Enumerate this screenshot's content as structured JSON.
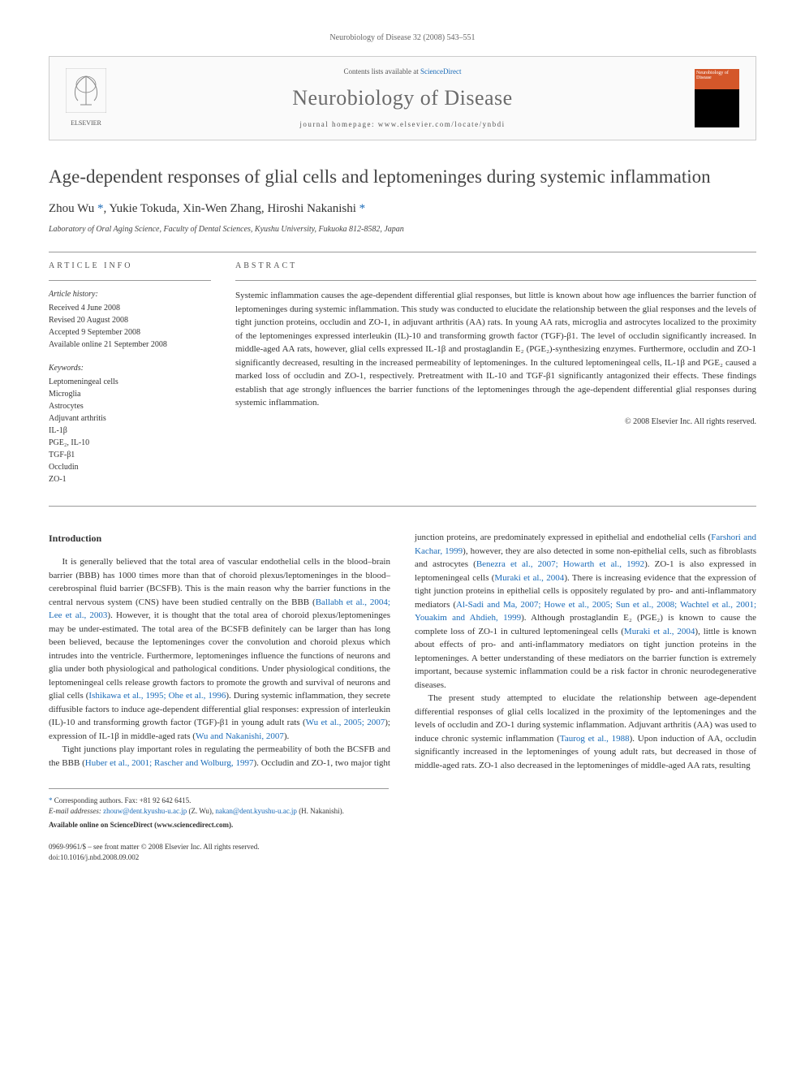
{
  "header": {
    "citation": "Neurobiology of Disease 32 (2008) 543–551"
  },
  "banner": {
    "elsevier_label": "ELSEVIER",
    "contents_prefix": "Contents lists available at ",
    "contents_link": "ScienceDirect",
    "journal_name": "Neurobiology of Disease",
    "homepage_prefix": "journal homepage: ",
    "homepage_url": "www.elsevier.com/locate/ynbdi",
    "cover_title": "Neurobiology of Disease"
  },
  "article": {
    "title": "Age-dependent responses of glial cells and leptomeninges during systemic inflammation",
    "authors_html": "Zhou Wu <span class='star'>*</span>, Yukie Tokuda, Xin-Wen Zhang, Hiroshi Nakanishi <span class='star'>*</span>",
    "affiliation": "Laboratory of Oral Aging Science, Faculty of Dental Sciences, Kyushu University, Fukuoka 812-8582, Japan"
  },
  "info": {
    "label": "ARTICLE INFO",
    "history_label": "Article history:",
    "history": [
      "Received 4 June 2008",
      "Revised 20 August 2008",
      "Accepted 9 September 2008",
      "Available online 21 September 2008"
    ],
    "keywords_label": "Keywords:",
    "keywords": [
      "Leptomeningeal cells",
      "Microglia",
      "Astrocytes",
      "Adjuvant arthritis",
      "IL-1β",
      "PGE₂, IL-10",
      "TGF-β1",
      "Occludin",
      "ZO-1"
    ]
  },
  "abstract": {
    "label": "ABSTRACT",
    "text": "Systemic inflammation causes the age-dependent differential glial responses, but little is known about how age influences the barrier function of leptomeninges during systemic inflammation. This study was conducted to elucidate the relationship between the glial responses and the levels of tight junction proteins, occludin and ZO-1, in adjuvant arthritis (AA) rats. In young AA rats, microglia and astrocytes localized to the proximity of the leptomeninges expressed interleukin (IL)-10 and transforming growth factor (TGF)-β1. The level of occludin significantly increased. In middle-aged AA rats, however, glial cells expressed IL-1β and prostaglandin E₂ (PGE₂)-synthesizing enzymes. Furthermore, occludin and ZO-1 significantly decreased, resulting in the increased permeability of leptomeninges. In the cultured leptomeningeal cells, IL-1β and PGE₂ caused a marked loss of occludin and ZO-1, respectively. Pretreatment with IL-10 and TGF-β1 significantly antagonized their effects. These findings establish that age strongly influences the barrier functions of the leptomeninges through the age-dependent differential glial responses during systemic inflammation.",
    "copyright": "© 2008 Elsevier Inc. All rights reserved."
  },
  "body": {
    "intro_heading": "Introduction",
    "p1": "It is generally believed that the total area of vascular endothelial cells in the blood–brain barrier (BBB) has 1000 times more than that of choroid plexus/leptomeninges in the blood–cerebrospinal fluid barrier (BCSFB). This is the main reason why the barrier functions in the central nervous system (CNS) have been studied centrally on the BBB (",
    "p1_ref1": "Ballabh et al., 2004; Lee et al., 2003",
    "p1_cont": "). However, it is thought that the total area of choroid plexus/leptomeninges may be under-estimated. The total area of the BCSFB definitely can be larger than has long been believed, because the leptomeninges cover the convolution and choroid plexus which intrudes into the ventricle. Furthermore, leptomeninges influence the functions of neurons and glia under both physiological and pathological conditions. Under physiological conditions, the leptomeningeal cells release growth factors to promote the growth and survival of neurons and glial cells (",
    "p1_ref2": "Ishikawa et al., 1995; Ohe et al., 1996",
    "p1_cont2": "). During systemic inflammation, they secrete diffusible factors to induce age-dependent differential glial responses: expression of interleukin (IL)-10 and transforming growth factor (TGF)-β1 in young adult rats (",
    "p1_ref3": "Wu et al., 2005; 2007",
    "p1_cont3": "); expression of IL-1β in middle-aged rats (",
    "p1_ref4": "Wu and Nakanishi, 2007",
    "p1_cont4": ").",
    "p2": "Tight junctions play important roles in regulating the permeability of both the BCSFB and the BBB (",
    "p2_ref1": "Huber et al., 2001; Rascher and Wolburg, 1997",
    "p2_cont": "). Occludin and ZO-1, two major tight junction proteins, are predominately expressed in epithelial and endothelial cells (",
    "p2_ref2": "Farshori and Kachar, 1999",
    "p2_cont2": "), however, they are also detected in some non-epithelial cells, such as fibroblasts and astrocytes (",
    "p2_ref3": "Benezra et al., 2007; Howarth et al., 1992",
    "p2_cont3": "). ZO-1 is also expressed in leptomeningeal cells (",
    "p2_ref4": "Muraki et al., 2004",
    "p2_cont4": "). There is increasing evidence that the expression of tight junction proteins in epithelial cells is oppositely regulated by pro- and anti-inflammatory mediators (",
    "p2_ref5": "Al-Sadi and Ma, 2007; Howe et al., 2005; Sun et al., 2008; Wachtel et al., 2001; Youakim and Ahdieh, 1999",
    "p2_cont5": "). Although prostaglandin E₂ (PGE₂) is known to cause the complete loss of ZO-1 in cultured leptomeningeal cells (",
    "p2_ref6": "Muraki et al., 2004",
    "p2_cont6": "), little is known about effects of pro- and anti-inflammatory mediators on tight junction proteins in the leptomeninges. A better understanding of these mediators on the barrier function is extremely important, because systemic inflammation could be a risk factor in chronic neurodegenerative diseases.",
    "p3": "The present study attempted to elucidate the relationship between age-dependent differential responses of glial cells localized in the proximity of the leptomeninges and the levels of occludin and ZO-1 during systemic inflammation. Adjuvant arthritis (AA) was used to induce chronic systemic inflammation (",
    "p3_ref1": "Taurog et al., 1988",
    "p3_cont": "). Upon induction of AA, occludin significantly increased in the leptomeninges of young adult rats, but decreased in those of middle-aged rats. ZO-1 also decreased in the leptomeninges of middle-aged AA rats, resulting"
  },
  "footnotes": {
    "corresponding": "Corresponding authors. Fax: +81 92 642 6415.",
    "email_label": "E-mail addresses:",
    "email1": "zhouw@dent.kyushu-u.ac.jp",
    "email1_who": " (Z. Wu), ",
    "email2": "nakan@dent.kyushu-u.ac.jp",
    "email2_who": " (H. Nakanishi).",
    "available": "Available online on ScienceDirect (www.sciencedirect.com)."
  },
  "doi": {
    "line1": "0969-9961/$ – see front matter © 2008 Elsevier Inc. All rights reserved.",
    "line2": "doi:10.1016/j.nbd.2008.09.002"
  },
  "colors": {
    "link": "#1a6bb8",
    "text": "#333333",
    "muted": "#666666",
    "border": "#cccccc",
    "journal_gray": "#6b6b6b"
  }
}
